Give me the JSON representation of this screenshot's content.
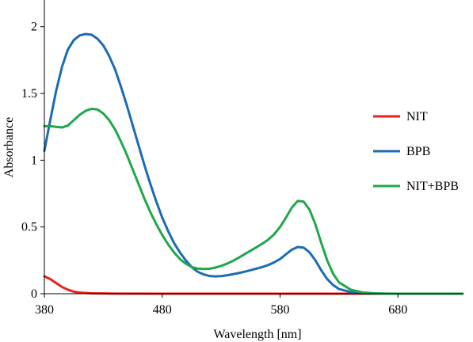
{
  "chart_data": {
    "type": "line",
    "xlabel": "Wavelength [nm]",
    "ylabel": "Absorbance",
    "xlim": [
      380,
      735
    ],
    "ylim": [
      0,
      2.2
    ],
    "x_ticks": [
      380,
      480,
      580,
      680
    ],
    "x_tick_labels": [
      "380",
      "480",
      "580",
      "680"
    ],
    "y_ticks": [
      0,
      0.5,
      1,
      1.5,
      2
    ],
    "y_tick_labels": [
      "0",
      "0.5",
      "1",
      "1.5",
      "2"
    ],
    "grid": false,
    "legend_position": "right",
    "series": [
      {
        "name": "NIT",
        "color": "#e8211c",
        "x": [
          380,
          385,
          390,
          395,
          400,
          405,
          410,
          420,
          440,
          480,
          520,
          580,
          640,
          700,
          735
        ],
        "y": [
          0.13,
          0.11,
          0.08,
          0.05,
          0.03,
          0.015,
          0.008,
          0.003,
          0.001,
          0,
          0,
          0,
          0,
          0,
          0
        ]
      },
      {
        "name": "BPB",
        "color": "#1c6bb3",
        "x": [
          380,
          385,
          390,
          395,
          400,
          405,
          410,
          415,
          420,
          425,
          430,
          435,
          440,
          445,
          450,
          455,
          460,
          465,
          470,
          475,
          480,
          485,
          490,
          495,
          500,
          505,
          510,
          515,
          520,
          525,
          530,
          535,
          540,
          545,
          550,
          555,
          560,
          565,
          570,
          575,
          580,
          585,
          590,
          595,
          600,
          605,
          610,
          615,
          620,
          625,
          630,
          640,
          650,
          660,
          670,
          680,
          700,
          735
        ],
        "y": [
          1.07,
          1.3,
          1.52,
          1.7,
          1.83,
          1.9,
          1.935,
          1.945,
          1.94,
          1.91,
          1.86,
          1.78,
          1.68,
          1.55,
          1.41,
          1.26,
          1.11,
          0.96,
          0.82,
          0.69,
          0.57,
          0.47,
          0.38,
          0.31,
          0.25,
          0.2,
          0.165,
          0.145,
          0.133,
          0.13,
          0.132,
          0.138,
          0.146,
          0.155,
          0.165,
          0.176,
          0.188,
          0.2,
          0.215,
          0.235,
          0.26,
          0.295,
          0.33,
          0.35,
          0.345,
          0.31,
          0.25,
          0.175,
          0.11,
          0.065,
          0.035,
          0.012,
          0.004,
          0.001,
          0,
          0,
          0,
          0
        ]
      },
      {
        "name": "NIT+BPB",
        "color": "#1fa84a",
        "x": [
          380,
          385,
          390,
          395,
          400,
          405,
          410,
          415,
          420,
          425,
          430,
          435,
          440,
          445,
          450,
          455,
          460,
          465,
          470,
          475,
          480,
          485,
          490,
          495,
          500,
          505,
          510,
          515,
          520,
          525,
          530,
          535,
          540,
          545,
          550,
          555,
          560,
          565,
          570,
          575,
          580,
          585,
          590,
          595,
          600,
          605,
          610,
          615,
          620,
          625,
          630,
          640,
          650,
          660,
          670,
          680,
          700,
          735
        ],
        "y": [
          1.255,
          1.255,
          1.25,
          1.245,
          1.26,
          1.3,
          1.34,
          1.37,
          1.385,
          1.38,
          1.35,
          1.3,
          1.23,
          1.14,
          1.04,
          0.93,
          0.82,
          0.71,
          0.61,
          0.52,
          0.44,
          0.37,
          0.31,
          0.26,
          0.225,
          0.2,
          0.188,
          0.185,
          0.187,
          0.195,
          0.208,
          0.225,
          0.246,
          0.27,
          0.296,
          0.322,
          0.348,
          0.375,
          0.405,
          0.445,
          0.5,
          0.57,
          0.645,
          0.695,
          0.69,
          0.63,
          0.52,
          0.38,
          0.25,
          0.15,
          0.085,
          0.03,
          0.01,
          0.003,
          0.001,
          0,
          0,
          0
        ]
      }
    ]
  }
}
